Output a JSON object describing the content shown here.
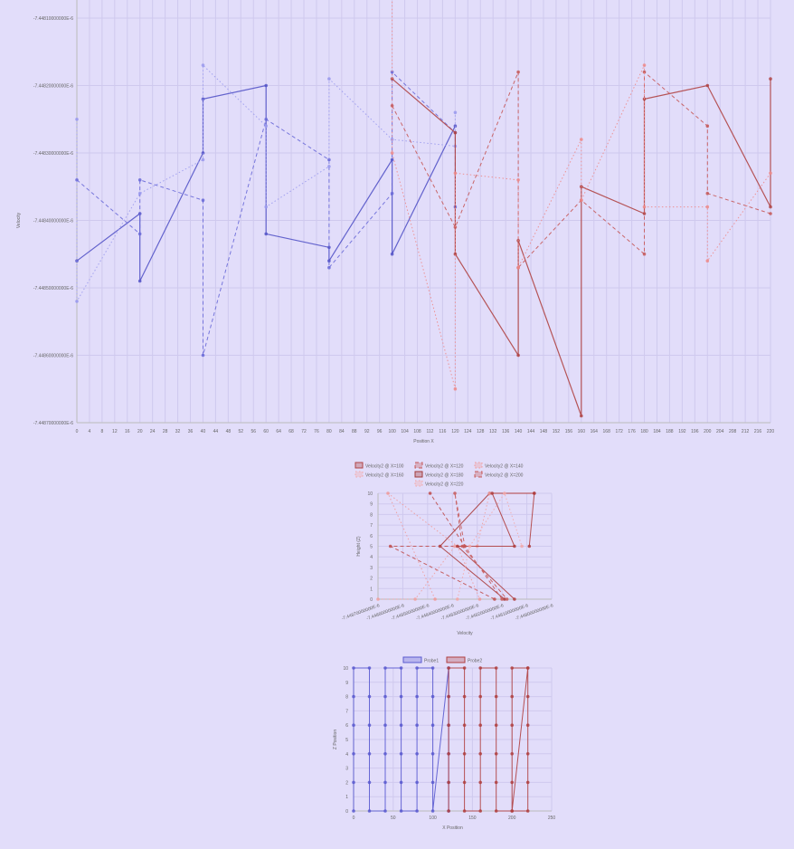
{
  "chart_data": [
    {
      "type": "line",
      "xlabel": "Position X",
      "ylabel": "Velocity",
      "x_ticks": [
        0,
        4,
        8,
        12,
        16,
        20,
        24,
        28,
        32,
        36,
        40,
        44,
        48,
        52,
        56,
        60,
        64,
        68,
        72,
        76,
        80,
        84,
        88,
        92,
        96,
        100,
        104,
        108,
        112,
        116,
        120,
        124,
        128,
        132,
        136,
        140,
        144,
        148,
        152,
        156,
        160,
        164,
        168,
        172,
        176,
        180,
        184,
        188,
        192,
        196,
        200,
        204,
        208,
        212,
        216,
        220
      ],
      "y_tick_labels": [
        "-7.44810000000E-6",
        "-7.44820000000E-6",
        "-7.44830000000E-6",
        "-7.44840000000E-6",
        "-7.44850000000E-6",
        "-7.44860000000E-6",
        "-7.44870000000E-6"
      ],
      "ylim": [
        -7.4487e-06,
        -7.4481e-06
      ],
      "series": [
        {
          "probe": "Probe1",
          "style": "solid",
          "color": "#5555c8",
          "points": [
            [
              0,
              -7.44846e-06
            ],
            [
              20,
              -7.44839e-06
            ],
            [
              20,
              -7.44849e-06
            ],
            [
              40,
              -7.4483e-06
            ],
            [
              40,
              -7.44822e-06
            ],
            [
              60,
              -7.4482e-06
            ],
            [
              60,
              -7.44842e-06
            ],
            [
              80,
              -7.44844e-06
            ],
            [
              80,
              -7.44846e-06
            ],
            [
              100,
              -7.44831e-06
            ],
            [
              100,
              -7.44845e-06
            ],
            [
              120,
              -7.44826e-06
            ]
          ]
        },
        {
          "probe": "Probe1",
          "style": "dashed",
          "color": "#6a6ad8",
          "points": [
            [
              0,
              -7.44834e-06
            ],
            [
              20,
              -7.44842e-06
            ],
            [
              20,
              -7.44834e-06
            ],
            [
              40,
              -7.44837e-06
            ],
            [
              40,
              -7.4486e-06
            ],
            [
              60,
              -7.44825e-06
            ],
            [
              80,
              -7.44831e-06
            ],
            [
              80,
              -7.44847e-06
            ],
            [
              100,
              -7.44836e-06
            ],
            [
              100,
              -7.44818e-06
            ],
            [
              120,
              -7.44827e-06
            ],
            [
              120,
              -7.44838e-06
            ]
          ]
        },
        {
          "probe": "Probe1",
          "style": "dotted",
          "color": "#9a9aee",
          "points": [
            [
              0,
              -7.44825e-06
            ],
            [
              0,
              -7.44852e-06
            ],
            [
              20,
              -7.44836e-06
            ],
            [
              40,
              -7.44831e-06
            ],
            [
              40,
              -7.44817e-06
            ],
            [
              60,
              -7.44826e-06
            ],
            [
              60,
              -7.44838e-06
            ],
            [
              80,
              -7.44832e-06
            ],
            [
              80,
              -7.44819e-06
            ],
            [
              100,
              -7.44828e-06
            ],
            [
              120,
              -7.44829e-06
            ],
            [
              120,
              -7.44824e-06
            ]
          ]
        },
        {
          "probe": "Probe2",
          "style": "solid",
          "color": "#b04545",
          "points": [
            [
              100,
              -7.44819e-06
            ],
            [
              120,
              -7.44827e-06
            ],
            [
              120,
              -7.44845e-06
            ],
            [
              140,
              -7.4486e-06
            ],
            [
              140,
              -7.44843e-06
            ],
            [
              160,
              -7.44869e-06
            ],
            [
              160,
              -7.44835e-06
            ],
            [
              180,
              -7.44839e-06
            ],
            [
              180,
              -7.44822e-06
            ],
            [
              200,
              -7.4482e-06
            ],
            [
              220,
              -7.44838e-06
            ],
            [
              220,
              -7.44819e-06
            ]
          ]
        },
        {
          "probe": "Probe2",
          "style": "dashed",
          "color": "#c65a5a",
          "points": [
            [
              100,
              -7.44823e-06
            ],
            [
              120,
              -7.44841e-06
            ],
            [
              140,
              -7.44818e-06
            ],
            [
              140,
              -7.44847e-06
            ],
            [
              160,
              -7.44837e-06
            ],
            [
              180,
              -7.44845e-06
            ],
            [
              180,
              -7.44818e-06
            ],
            [
              200,
              -7.44826e-06
            ],
            [
              200,
              -7.44836e-06
            ],
            [
              220,
              -7.44839e-06
            ]
          ]
        },
        {
          "probe": "Probe2",
          "style": "dotted",
          "color": "#ee8a8a",
          "points": [
            [
              100,
              -7.44807e-06
            ],
            [
              100,
              -7.4483e-06
            ],
            [
              120,
              -7.44865e-06
            ],
            [
              120,
              -7.44833e-06
            ],
            [
              140,
              -7.44834e-06
            ],
            [
              140,
              -7.44847e-06
            ],
            [
              160,
              -7.44828e-06
            ],
            [
              160,
              -7.44837e-06
            ],
            [
              180,
              -7.44817e-06
            ],
            [
              180,
              -7.44838e-06
            ],
            [
              200,
              -7.44838e-06
            ],
            [
              200,
              -7.44846e-06
            ],
            [
              220,
              -7.44833e-06
            ]
          ]
        }
      ]
    },
    {
      "type": "line",
      "xlabel": "Velocity",
      "ylabel": "Height (Z)",
      "ylim": [
        0,
        10
      ],
      "y_ticks": [
        0,
        1,
        2,
        3,
        4,
        5,
        6,
        7,
        8,
        9,
        10
      ],
      "x_tick_labels": [
        "-7.44870000000E-6",
        "-7.44860000000E-6",
        "-7.44850000000E-6",
        "-7.44840000000E-6",
        "-7.44830000000E-6",
        "-7.44820000000E-6",
        "-7.44810000000E-6",
        "-7.44800000000E-6"
      ],
      "xlim": [
        -7.4487e-06,
        -7.448e-06
      ],
      "legend": [
        "Velocity2 @ X=100",
        "Velocity2 @ X=120",
        "Velocity2 @ X=140",
        "Velocity2 @ X=160",
        "Velocity2 @ X=180",
        "Velocity2 @ X=200",
        "Velocity2 @ X=220"
      ],
      "legend_styles": [
        "solid",
        "dashed",
        "dotted",
        "dotted",
        "solid",
        "dashed",
        "dotted"
      ],
      "legend_colors": [
        "#b04545",
        "#c65a5a",
        "#f09a9a",
        "#f3a8a8",
        "#a23a3a",
        "#c65a5a",
        "#f3a8a8"
      ],
      "series": [
        {
          "name": "Velocity2 @ X=100",
          "style": "solid",
          "color": "#a83a3a",
          "points": [
            [
              -7.44819e-06,
              0
            ],
            [
              -7.44845e-06,
              5
            ],
            [
              -7.44825e-06,
              10
            ],
            [
              -7.44807e-06,
              10
            ]
          ]
        },
        {
          "name": "Velocity2 @ X=120",
          "style": "dashed",
          "color": "#c05050",
          "points": [
            [
              -7.44823e-06,
              0
            ],
            [
              -7.44865e-06,
              5
            ],
            [
              -7.44835e-06,
              5
            ],
            [
              -7.44849e-06,
              10
            ]
          ]
        },
        {
          "name": "Velocity2 @ X=140",
          "style": "dotted",
          "color": "#f09a9a",
          "points": [
            [
              -7.44847e-06,
              0
            ],
            [
              -7.44866e-06,
              10
            ],
            [
              -7.44838e-06,
              5
            ],
            [
              -7.44829e-06,
              0
            ]
          ]
        },
        {
          "name": "Velocity2 @ X=160",
          "style": "dotted",
          "color": "#f0a0a0",
          "points": [
            [
              -7.4487e-06,
              0
            ],
            [
              -7.44855e-06,
              0
            ],
            [
              -7.44839e-06,
              5
            ],
            [
              -7.4483e-06,
              5
            ],
            [
              -7.44825e-06,
              10
            ]
          ]
        },
        {
          "name": "Velocity2 @ X=180",
          "style": "solid",
          "color": "#b03f3f",
          "points": [
            [
              -7.44815e-06,
              0
            ],
            [
              -7.44838e-06,
              5
            ],
            [
              -7.44815e-06,
              5
            ],
            [
              -7.44824e-06,
              10
            ],
            [
              -7.44807e-06,
              10
            ],
            [
              -7.44809e-06,
              5
            ]
          ]
        },
        {
          "name": "Velocity2 @ X=200",
          "style": "dashed",
          "color": "#c65a5a",
          "points": [
            [
              -7.4482e-06,
              0
            ],
            [
              -7.44835e-06,
              5
            ],
            [
              -7.44839e-06,
              10
            ],
            [
              -7.44836e-06,
              5
            ],
            [
              -7.44818e-06,
              0
            ]
          ]
        },
        {
          "name": "Velocity2 @ X=220",
          "style": "dotted",
          "color": "#f3a8a8",
          "points": [
            [
              -7.44838e-06,
              0
            ],
            [
              -7.44833e-06,
              5
            ],
            [
              -7.44819e-06,
              10
            ],
            [
              -7.44812e-06,
              5
            ]
          ]
        }
      ]
    },
    {
      "type": "line",
      "xlabel": "X Position",
      "ylabel": "Z Position",
      "xlim": [
        0,
        250
      ],
      "ylim": [
        0,
        10
      ],
      "x_ticks": [
        0,
        50,
        100,
        150,
        200,
        250
      ],
      "y_ticks": [
        0,
        1,
        2,
        3,
        4,
        5,
        6,
        7,
        8,
        9,
        10
      ],
      "legend": [
        "Probe1",
        "Probe2"
      ],
      "series": [
        {
          "name": "Probe1",
          "color": "#5a5ad0",
          "points": [
            [
              0,
              0
            ],
            [
              0,
              2
            ],
            [
              0,
              4
            ],
            [
              0,
              6
            ],
            [
              0,
              8
            ],
            [
              0,
              10
            ],
            [
              20,
              10
            ],
            [
              20,
              8
            ],
            [
              20,
              6
            ],
            [
              20,
              4
            ],
            [
              20,
              2
            ],
            [
              20,
              0
            ],
            [
              40,
              0
            ],
            [
              40,
              2
            ],
            [
              40,
              4
            ],
            [
              40,
              6
            ],
            [
              40,
              8
            ],
            [
              40,
              10
            ],
            [
              60,
              10
            ],
            [
              60,
              8
            ],
            [
              60,
              6
            ],
            [
              60,
              4
            ],
            [
              60,
              2
            ],
            [
              60,
              0
            ],
            [
              80,
              0
            ],
            [
              80,
              2
            ],
            [
              80,
              4
            ],
            [
              80,
              6
            ],
            [
              80,
              8
            ],
            [
              80,
              10
            ],
            [
              100,
              10
            ],
            [
              100,
              8
            ],
            [
              100,
              6
            ],
            [
              100,
              4
            ],
            [
              100,
              2
            ],
            [
              100,
              0
            ],
            [
              120,
              10
            ],
            [
              120,
              8
            ],
            [
              120,
              6
            ],
            [
              120,
              4
            ],
            [
              120,
              2
            ],
            [
              120,
              0
            ]
          ]
        },
        {
          "name": "Probe2",
          "color": "#b04040",
          "points": [
            [
              120,
              0
            ],
            [
              120,
              2
            ],
            [
              120,
              4
            ],
            [
              120,
              6
            ],
            [
              120,
              8
            ],
            [
              120,
              10
            ],
            [
              140,
              10
            ],
            [
              140,
              8
            ],
            [
              140,
              6
            ],
            [
              140,
              4
            ],
            [
              140,
              2
            ],
            [
              140,
              0
            ],
            [
              160,
              0
            ],
            [
              160,
              2
            ],
            [
              160,
              4
            ],
            [
              160,
              6
            ],
            [
              160,
              8
            ],
            [
              160,
              10
            ],
            [
              180,
              10
            ],
            [
              180,
              8
            ],
            [
              180,
              6
            ],
            [
              180,
              4
            ],
            [
              180,
              2
            ],
            [
              180,
              0
            ],
            [
              200,
              0
            ],
            [
              200,
              2
            ],
            [
              200,
              4
            ],
            [
              200,
              6
            ],
            [
              200,
              8
            ],
            [
              200,
              10
            ],
            [
              220,
              10
            ],
            [
              220,
              8
            ],
            [
              220,
              6
            ],
            [
              220,
              4
            ],
            [
              220,
              2
            ],
            [
              220,
              0
            ],
            [
              200,
              0
            ],
            [
              220,
              10
            ]
          ]
        }
      ]
    }
  ]
}
